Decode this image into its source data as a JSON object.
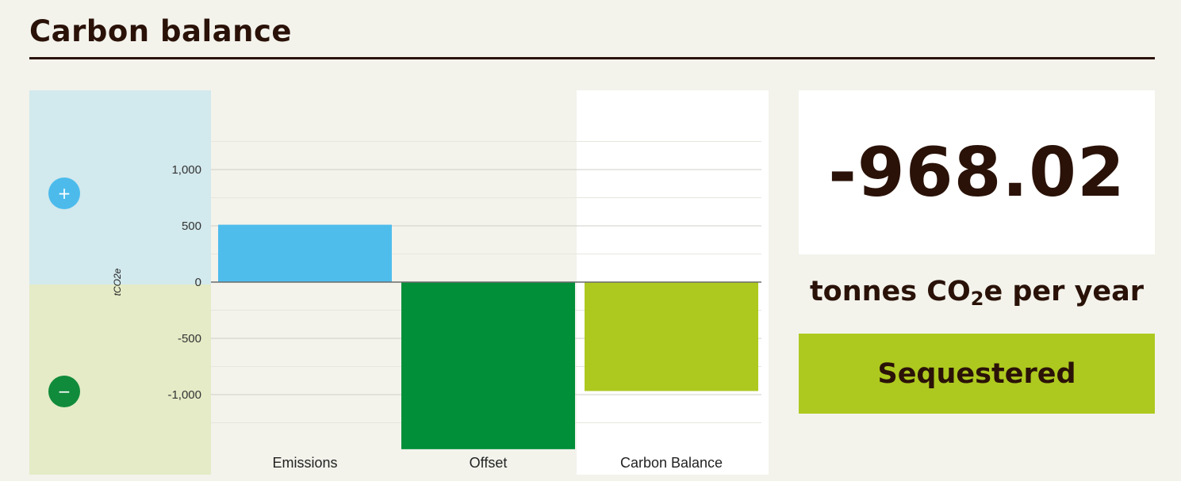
{
  "header": {
    "title": "Carbon balance"
  },
  "badges": {
    "plus": "+",
    "minus": "−"
  },
  "summary": {
    "value": "-968.02",
    "unit_prefix": "tonnes CO",
    "unit_sub": "2",
    "unit_suffix": "e per year",
    "status": "Sequestered"
  },
  "colors": {
    "emissions": "#4fbdec",
    "offset": "#028f3a",
    "balance": "#adc91f",
    "text": "#2a1208"
  },
  "chart_data": {
    "type": "bar",
    "categories": [
      "Emissions",
      "Offset",
      "Carbon Balance"
    ],
    "values": [
      510,
      -1485,
      -968.02
    ],
    "ylabel": "tCO2e",
    "ylim": [
      -1250,
      1250
    ],
    "yticks": [
      1000,
      500,
      0,
      -500,
      -1000
    ],
    "ytick_labels": [
      "1,000",
      "500",
      "0",
      "-500",
      "-1,000"
    ],
    "grid": true
  }
}
